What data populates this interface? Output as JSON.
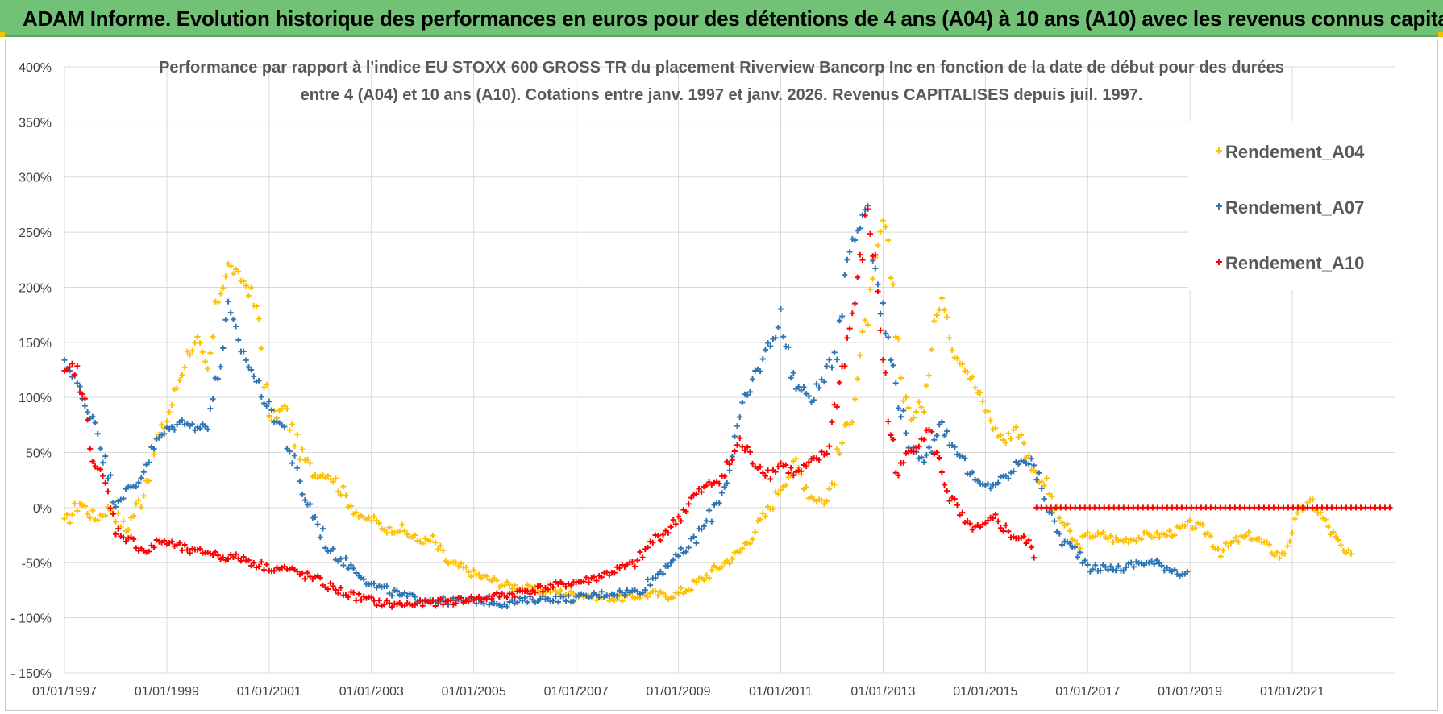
{
  "banner": {
    "title": "ADAM Informe. Evolution historique des performances en euros pour des détentions de 4 ans (A04) à 10 ans (A10) avec les revenus connus capitalisés"
  },
  "colors": {
    "banner_bg": "#71c277",
    "A04": "#ffc000",
    "A07": "#2e75b6",
    "A10": "#ff0000",
    "grid": "#d9d9d9"
  },
  "chart_data": {
    "type": "scatter",
    "title_line1": "Performance par rapport à l'indice EU STOXX 600 GROSS TR  du placement Riverview Bancorp Inc en fonction de la date de début pour des durées",
    "title_line2": "entre 4 (A04) et 10 ans (A10). Cotations entre janv. 1997 et janv. 2026. Revenus CAPITALISES depuis juil. 1997.",
    "xlabel": "",
    "ylabel": "",
    "xlim": [
      1997.0,
      2023.0
    ],
    "ylim": [
      -150,
      400
    ],
    "y_ticks": [
      400,
      350,
      300,
      250,
      200,
      150,
      100,
      50,
      0,
      -50,
      -100,
      -150
    ],
    "y_tick_labels": [
      "400%",
      "350%",
      "300%",
      "250%",
      "200%",
      "150%",
      "100%",
      "50%",
      "0%",
      "-50%",
      "- 100%",
      "- 150%"
    ],
    "x_ticks": [
      1997,
      1999,
      2001,
      2003,
      2005,
      2007,
      2009,
      2011,
      2013,
      2015,
      2017,
      2019,
      2021
    ],
    "x_tick_labels": [
      "01/01/1997",
      "01/01/1999",
      "01/01/2001",
      "01/01/2003",
      "01/01/2005",
      "01/01/2007",
      "01/01/2009",
      "01/01/2011",
      "01/01/2013",
      "01/01/2015",
      "01/01/2017",
      "01/01/2019",
      "01/01/2021"
    ],
    "legend": [
      "Rendement_A04",
      "Rendement_A07",
      "Rendement_A10"
    ],
    "series": [
      {
        "name": "Rendement_A04",
        "color": "#ffc000",
        "x": [
          1997.0,
          1997.3,
          1997.6,
          1997.9,
          1998.2,
          1998.5,
          1998.8,
          1999.0,
          1999.2,
          1999.4,
          1999.6,
          1999.8,
          2000.0,
          2000.2,
          2000.4,
          2000.6,
          2000.8,
          2001.0,
          2001.3,
          2001.6,
          2001.9,
          2002.2,
          2002.5,
          2002.8,
          2003.0,
          2003.3,
          2003.6,
          2003.9,
          2004.2,
          2004.5,
          2004.8,
          2005.0,
          2005.3,
          2005.6,
          2005.9,
          2006.2,
          2006.5,
          2006.8,
          2007.0,
          2007.3,
          2007.6,
          2007.9,
          2008.2,
          2008.5,
          2008.8,
          2009.0,
          2009.3,
          2009.6,
          2009.9,
          2010.2,
          2010.5,
          2010.8,
          2011.0,
          2011.3,
          2011.6,
          2011.9,
          2012.2,
          2012.4,
          2012.6,
          2012.8,
          2013.0,
          2013.2,
          2013.4,
          2013.6,
          2013.8,
          2014.0,
          2014.2,
          2014.4,
          2014.6,
          2014.8,
          2015.0,
          2015.2,
          2015.4,
          2015.6,
          2015.8,
          2016.0,
          2016.2,
          2016.4,
          2016.6,
          2016.8,
          2017.0,
          2017.3,
          2017.6,
          2017.9,
          2018.2,
          2018.5,
          2018.8,
          2019.0,
          2019.3,
          2019.6,
          2019.9,
          2020.2,
          2020.5,
          2020.8,
          2021.0,
          2021.2,
          2021.4,
          2021.6,
          2021.8,
          2022.0,
          2022.2
        ],
        "y": [
          -15,
          5,
          -10,
          0,
          -20,
          10,
          60,
          80,
          110,
          140,
          150,
          120,
          190,
          220,
          210,
          200,
          170,
          80,
          90,
          50,
          30,
          30,
          10,
          -10,
          -10,
          -20,
          -20,
          -30,
          -30,
          -50,
          -55,
          -60,
          -65,
          -70,
          -72,
          -75,
          -75,
          -78,
          -78,
          -80,
          -82,
          -82,
          -80,
          -78,
          -80,
          -78,
          -70,
          -60,
          -50,
          -40,
          -20,
          0,
          20,
          40,
          10,
          5,
          60,
          90,
          150,
          200,
          260,
          200,
          100,
          80,
          100,
          170,
          190,
          140,
          130,
          110,
          90,
          70,
          60,
          75,
          50,
          30,
          20,
          -5,
          -20,
          -35,
          -25,
          -25,
          -30,
          -28,
          -25,
          -25,
          -20,
          -15,
          -20,
          -40,
          -30,
          -25,
          -35,
          -45,
          -20,
          0,
          5,
          -10,
          -25,
          -40,
          -45
        ]
      },
      {
        "name": "Rendement_A07",
        "color": "#2e75b6",
        "x": [
          1997.0,
          1997.2,
          1997.4,
          1997.6,
          1997.8,
          1998.0,
          1998.2,
          1998.4,
          1998.6,
          1998.8,
          1999.0,
          1999.2,
          1999.4,
          1999.6,
          1999.8,
          2000.0,
          2000.2,
          2000.4,
          2000.6,
          2000.8,
          2001.0,
          2001.3,
          2001.6,
          2001.9,
          2002.2,
          2002.5,
          2002.8,
          2003.0,
          2003.3,
          2003.6,
          2003.9,
          2004.2,
          2004.5,
          2004.8,
          2005.0,
          2005.3,
          2005.6,
          2005.9,
          2006.2,
          2006.5,
          2006.8,
          2007.0,
          2007.3,
          2007.6,
          2007.9,
          2008.2,
          2008.5,
          2008.8,
          2009.0,
          2009.3,
          2009.6,
          2009.9,
          2010.2,
          2010.5,
          2010.8,
          2011.0,
          2011.3,
          2011.6,
          2011.9,
          2012.1,
          2012.3,
          2012.5,
          2012.7,
          2012.9,
          2013.1,
          2013.3,
          2013.5,
          2013.7,
          2013.9,
          2014.1,
          2014.3,
          2014.5,
          2014.7,
          2014.9,
          2015.1,
          2015.3,
          2015.5,
          2015.7,
          2015.9,
          2016.1,
          2016.3,
          2016.5,
          2016.8,
          2017.1,
          2017.4,
          2017.7,
          2018.0,
          2018.3,
          2018.6,
          2018.9,
          2019.0
        ],
        "y": [
          130,
          120,
          90,
          80,
          40,
          5,
          15,
          20,
          40,
          60,
          70,
          75,
          80,
          70,
          80,
          120,
          180,
          150,
          130,
          110,
          90,
          70,
          20,
          -10,
          -40,
          -50,
          -60,
          -70,
          -75,
          -80,
          -82,
          -84,
          -85,
          -84,
          -84,
          -85,
          -87,
          -85,
          -83,
          -82,
          -83,
          -82,
          -80,
          -78,
          -77,
          -76,
          -65,
          -50,
          -45,
          -30,
          -10,
          20,
          80,
          120,
          150,
          170,
          110,
          100,
          120,
          150,
          230,
          250,
          280,
          200,
          150,
          100,
          60,
          40,
          50,
          80,
          60,
          50,
          30,
          20,
          20,
          25,
          30,
          45,
          40,
          20,
          -10,
          -30,
          -40,
          -55,
          -55,
          -55,
          -50,
          -50,
          -55,
          -60,
          -60
        ]
      },
      {
        "name": "Rendement_A10",
        "color": "#ff0000",
        "x": [
          1997.0,
          1997.2,
          1997.4,
          1997.6,
          1997.8,
          1998.0,
          1998.3,
          1998.6,
          1998.9,
          1999.2,
          1999.5,
          1999.8,
          2000.1,
          2000.4,
          2000.7,
          2001.0,
          2001.3,
          2001.6,
          2001.9,
          2002.2,
          2002.5,
          2002.8,
          2003.1,
          2003.4,
          2003.7,
          2004.0,
          2004.3,
          2004.6,
          2004.9,
          2005.2,
          2005.5,
          2005.8,
          2006.1,
          2006.4,
          2006.7,
          2007.0,
          2007.3,
          2007.6,
          2007.9,
          2008.2,
          2008.5,
          2008.8,
          2009.0,
          2009.3,
          2009.6,
          2009.9,
          2010.2,
          2010.5,
          2010.8,
          2011.0,
          2011.3,
          2011.6,
          2011.9,
          2012.1,
          2012.3,
          2012.5,
          2012.7,
          2012.9,
          2013.1,
          2013.3,
          2013.5,
          2013.7,
          2013.9,
          2014.1,
          2014.3,
          2014.6,
          2014.9,
          2015.2,
          2015.5,
          2015.8,
          2016.0
        ],
        "y": [
          120,
          130,
          90,
          40,
          20,
          -20,
          -30,
          -40,
          -30,
          -35,
          -40,
          -40,
          -45,
          -45,
          -50,
          -55,
          -55,
          -60,
          -65,
          -72,
          -78,
          -82,
          -86,
          -88,
          -88,
          -87,
          -86,
          -85,
          -83,
          -82,
          -80,
          -78,
          -75,
          -73,
          -70,
          -68,
          -65,
          -60,
          -55,
          -50,
          -30,
          -20,
          -10,
          10,
          20,
          30,
          60,
          40,
          30,
          40,
          30,
          40,
          50,
          100,
          150,
          200,
          270,
          200,
          80,
          30,
          50,
          60,
          70,
          40,
          10,
          -15,
          -20,
          -10,
          -25,
          -30,
          -45
        ]
      },
      {
        "name": "Rendement_A10",
        "color": "#ff0000",
        "x": [
          2016.0,
          2023.0
        ],
        "y": [
          0,
          0
        ]
      }
    ]
  }
}
